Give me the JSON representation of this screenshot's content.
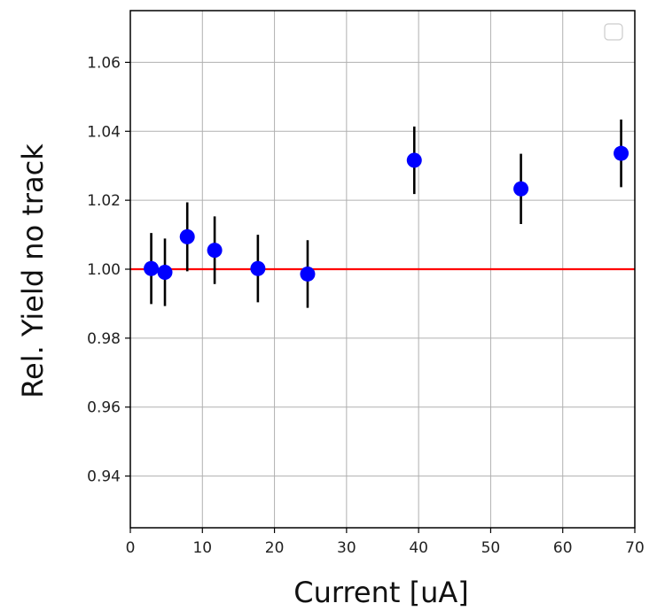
{
  "chart_data": {
    "type": "scatter",
    "title": "",
    "xlabel": "Current [uA]",
    "ylabel": "Rel. Yield no track",
    "xlim": [
      0,
      70
    ],
    "ylim": [
      0.925,
      1.075
    ],
    "x_ticks": [
      0,
      10,
      20,
      30,
      40,
      50,
      60,
      70
    ],
    "x_tick_labels": [
      "0",
      "10",
      "20",
      "30",
      "40",
      "50",
      "60",
      "70"
    ],
    "y_ticks": [
      0.94,
      0.96,
      0.98,
      1.0,
      1.02,
      1.04,
      1.06
    ],
    "y_tick_labels": [
      "0.94",
      "0.96",
      "0.98",
      "1.00",
      "1.02",
      "1.04",
      "1.06"
    ],
    "grid": true,
    "legend": "top-right (empty)",
    "reference_line": {
      "y": 1.0,
      "color": "#ff0000"
    },
    "series": [
      {
        "marker_color": "#0000ff",
        "errorbar_color": "#000000",
        "points": [
          {
            "x": 2.9,
            "y": 1.0002,
            "yerr": 0.0103
          },
          {
            "x": 4.8,
            "y": 0.9991,
            "yerr": 0.0098
          },
          {
            "x": 7.9,
            "y": 1.0094,
            "yerr": 0.01
          },
          {
            "x": 11.7,
            "y": 1.0055,
            "yerr": 0.0098
          },
          {
            "x": 17.7,
            "y": 1.0002,
            "yerr": 0.0098
          },
          {
            "x": 24.6,
            "y": 0.9986,
            "yerr": 0.0098
          },
          {
            "x": 39.4,
            "y": 1.0316,
            "yerr": 0.0098
          },
          {
            "x": 54.2,
            "y": 1.0233,
            "yerr": 0.0102
          },
          {
            "x": 68.1,
            "y": 1.0336,
            "yerr": 0.0098
          }
        ]
      }
    ]
  }
}
